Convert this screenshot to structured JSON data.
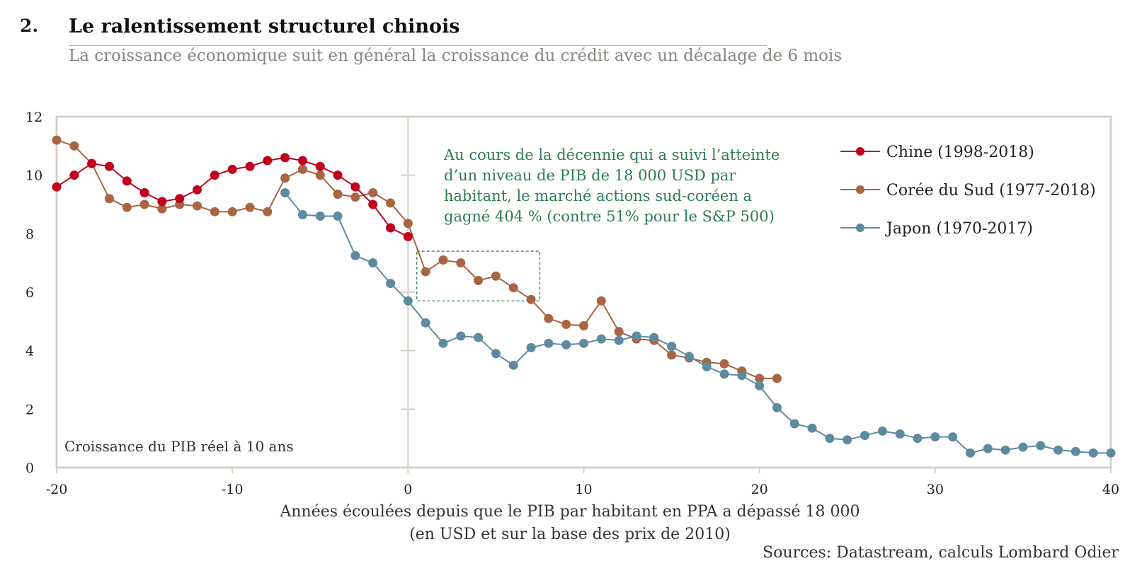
{
  "header": {
    "number": "2.",
    "title": "Le ralentissement structurel chinois",
    "subtitle": "La croissance économique suit en général la croissance du crédit avec un décalage de 6 mois"
  },
  "annotation": {
    "lines": [
      "Au cours de la décennie qui a suivi l’atteinte",
      "d’un niveau de PIB de 18 000 USD par",
      "habitant, le marché actions sud-coréen a",
      "gagné 404 % (contre 51% pour le S&P 500)"
    ],
    "color": "#2e7d4f"
  },
  "sources": "Sources: Datastream, calculs Lombard Odier",
  "chart_data": {
    "type": "line",
    "inner_label": "Croissance du PIB réel à 10 ans",
    "xlabel_lines": [
      "Années écoulées depuis que le PIB par habitant en PPA a dépassé 18 000",
      "(en USD et sur la base des prix de 2010)"
    ],
    "xlim": [
      -20,
      40
    ],
    "ylim": [
      0,
      12
    ],
    "x_ticks": [
      -20,
      -10,
      0,
      10,
      20,
      30,
      40
    ],
    "x_tick_labels": [
      "-20",
      "-10",
      "0",
      "10",
      "20",
      "30",
      "40"
    ],
    "y_ticks": [
      0,
      2,
      4,
      6,
      8,
      10,
      12
    ],
    "y_tick_labels": [
      "0",
      "2",
      "4",
      "6",
      "8",
      "10",
      "12"
    ],
    "legend_position": "top-right",
    "highlight_box": {
      "x": [
        0.5,
        7.5
      ],
      "y": [
        5.7,
        7.4
      ]
    },
    "series": [
      {
        "name": "Chine (1998-2018)",
        "color": "#c0001f",
        "x": [
          -20,
          -19,
          -18,
          -17,
          -16,
          -15,
          -14,
          -13,
          -12,
          -11,
          -10,
          -9,
          -8,
          -7,
          -6,
          -5,
          -4,
          -3,
          -2,
          -1,
          0
        ],
        "values": [
          9.6,
          10.0,
          10.4,
          10.3,
          9.8,
          9.4,
          9.1,
          9.2,
          9.5,
          10.0,
          10.2,
          10.3,
          10.5,
          10.6,
          10.5,
          10.3,
          10.0,
          9.6,
          9.0,
          8.2,
          7.9
        ]
      },
      {
        "name": "Corée du Sud (1977-2018)",
        "color": "#a86443",
        "x": [
          -20,
          -19,
          -18,
          -17,
          -16,
          -15,
          -14,
          -13,
          -12,
          -11,
          -10,
          -9,
          -8,
          -7,
          -6,
          -5,
          -4,
          -3,
          -2,
          -1,
          0,
          1,
          2,
          3,
          4,
          5,
          6,
          7,
          8,
          9,
          10,
          11,
          12,
          13,
          14,
          15,
          16,
          17,
          18,
          19,
          20,
          21
        ],
        "values": [
          11.2,
          11.0,
          10.4,
          9.2,
          8.9,
          9.0,
          8.85,
          9.0,
          8.95,
          8.75,
          8.75,
          8.9,
          8.75,
          9.9,
          10.2,
          10.0,
          9.35,
          9.25,
          9.4,
          9.05,
          8.35,
          6.7,
          7.1,
          7.0,
          6.4,
          6.55,
          6.15,
          5.75,
          5.1,
          4.9,
          4.85,
          5.7,
          4.65,
          4.4,
          4.35,
          3.85,
          3.75,
          3.6,
          3.55,
          3.3,
          3.05,
          3.05
        ]
      },
      {
        "name": "Japon (1970-2017)",
        "color": "#5e8aa0",
        "x": [
          -7,
          -6,
          -5,
          -4,
          -3,
          -2,
          -1,
          0,
          1,
          2,
          3,
          4,
          5,
          6,
          7,
          8,
          9,
          10,
          11,
          12,
          13,
          14,
          15,
          16,
          17,
          18,
          19,
          20,
          21,
          22,
          23,
          24,
          25,
          26,
          27,
          28,
          29,
          30,
          31,
          32,
          33,
          34,
          35,
          36,
          37,
          38,
          39,
          40
        ],
        "values": [
          9.4,
          8.65,
          8.6,
          8.6,
          7.25,
          7.0,
          6.3,
          5.7,
          4.95,
          4.25,
          4.5,
          4.45,
          3.9,
          3.5,
          4.1,
          4.25,
          4.2,
          4.25,
          4.4,
          4.35,
          4.5,
          4.45,
          4.15,
          3.8,
          3.45,
          3.2,
          3.15,
          2.8,
          2.05,
          1.5,
          1.35,
          1.0,
          0.95,
          1.1,
          1.25,
          1.15,
          1.0,
          1.05,
          1.05,
          0.5,
          0.65,
          0.6,
          0.7,
          0.75,
          0.6,
          0.55,
          0.5,
          0.5
        ]
      }
    ]
  }
}
